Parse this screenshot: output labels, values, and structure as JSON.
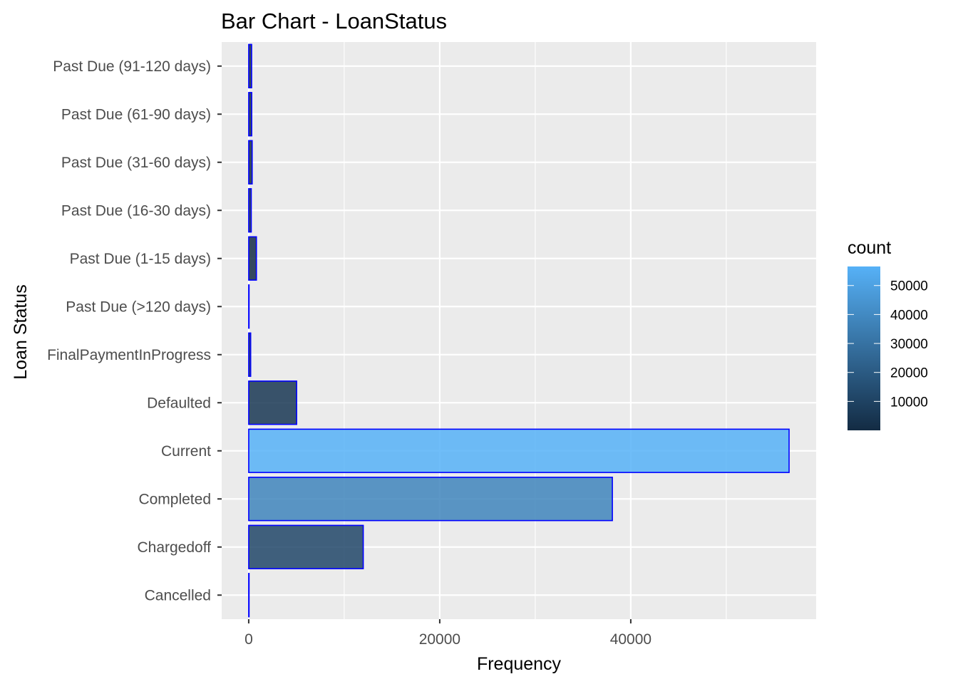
{
  "chart_data": {
    "type": "bar",
    "orientation": "horizontal",
    "title": "Bar Chart - LoanStatus",
    "xlabel": "Frequency",
    "ylabel": "Loan Status",
    "categories": [
      "Cancelled",
      "Chargedoff",
      "Completed",
      "Current",
      "Defaulted",
      "FinalPaymentInProgress",
      "Past Due (>120 days)",
      "Past Due (1-15 days)",
      "Past Due (16-30 days)",
      "Past Due (31-60 days)",
      "Past Due (61-90 days)",
      "Past Due (91-120 days)"
    ],
    "values": [
      5,
      11992,
      38074,
      56576,
      5018,
      205,
      16,
      806,
      265,
      361,
      313,
      304
    ],
    "xlim": [
      -2830,
      59410
    ],
    "x_ticks": [
      0,
      20000,
      40000
    ],
    "x_minor_ticks": [
      10000,
      30000,
      50000
    ],
    "grid": true,
    "colors": {
      "panel_background": "#ebebeb",
      "grid": "#ffffff",
      "bar_outline": "#0000ff",
      "gradient_low": "#132b43",
      "gradient_high": "#56b1f7"
    },
    "legend": {
      "title": "count",
      "position": "right",
      "range": [
        5,
        56576
      ],
      "breaks": [
        10000,
        20000,
        30000,
        40000,
        50000
      ],
      "labels": [
        "10000",
        "20000",
        "30000",
        "40000",
        "50000"
      ]
    }
  }
}
